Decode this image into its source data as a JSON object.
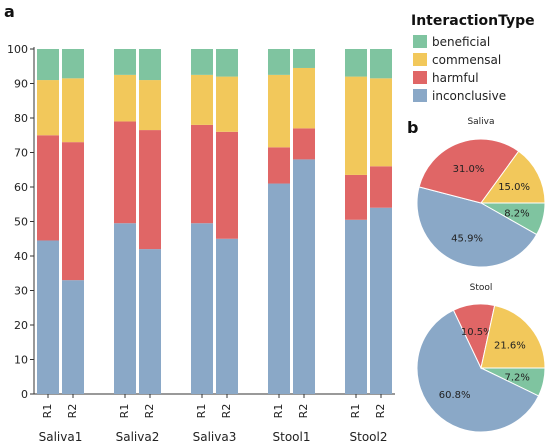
{
  "panel_labels": {
    "a": "a",
    "b": "b"
  },
  "legend": {
    "title": "InteractionType",
    "items": [
      {
        "label": "beneficial",
        "color": "#7fc4a0"
      },
      {
        "label": "commensal",
        "color": "#f2c85b"
      },
      {
        "label": "harmful",
        "color": "#e06666"
      },
      {
        "label": "inconclusive",
        "color": "#8aa8c7"
      }
    ]
  },
  "chart_data": [
    {
      "type": "bar",
      "stacked": true,
      "ylim": [
        0,
        100
      ],
      "yticks": [
        0,
        10,
        20,
        30,
        40,
        50,
        60,
        70,
        80,
        90,
        100
      ],
      "groups": [
        {
          "name": "Saliva1",
          "bars": [
            {
              "label": "R1",
              "inconclusive": 44.5,
              "harmful": 30.5,
              "commensal": 16.0,
              "beneficial": 9.0
            },
            {
              "label": "R2",
              "inconclusive": 33.0,
              "harmful": 40.0,
              "commensal": 18.5,
              "beneficial": 8.5
            }
          ]
        },
        {
          "name": "Saliva2",
          "bars": [
            {
              "label": "R1",
              "inconclusive": 49.5,
              "harmful": 29.5,
              "commensal": 13.5,
              "beneficial": 7.5
            },
            {
              "label": "R2",
              "inconclusive": 42.0,
              "harmful": 34.5,
              "commensal": 14.5,
              "beneficial": 9.0
            }
          ]
        },
        {
          "name": "Saliva3",
          "bars": [
            {
              "label": "R1",
              "inconclusive": 49.5,
              "harmful": 28.5,
              "commensal": 14.5,
              "beneficial": 7.5
            },
            {
              "label": "R2",
              "inconclusive": 45.0,
              "harmful": 31.0,
              "commensal": 16.0,
              "beneficial": 8.0
            }
          ]
        },
        {
          "name": "Stool1",
          "bars": [
            {
              "label": "R1",
              "inconclusive": 61.0,
              "harmful": 10.5,
              "commensal": 21.0,
              "beneficial": 7.5
            },
            {
              "label": "R2",
              "inconclusive": 68.0,
              "harmful": 9.0,
              "commensal": 17.5,
              "beneficial": 5.5
            }
          ]
        },
        {
          "name": "Stool2",
          "bars": [
            {
              "label": "R1",
              "inconclusive": 50.5,
              "harmful": 13.0,
              "commensal": 28.5,
              "beneficial": 8.0
            },
            {
              "label": "R2",
              "inconclusive": 54.0,
              "harmful": 12.0,
              "commensal": 25.5,
              "beneficial": 8.5
            }
          ]
        }
      ]
    },
    {
      "type": "pie",
      "title": "Saliva",
      "slices": [
        {
          "label": "beneficial",
          "value": 8.2,
          "text": "8.2%"
        },
        {
          "label": "inconclusive",
          "value": 45.9,
          "text": "45.9%"
        },
        {
          "label": "harmful",
          "value": 31.0,
          "text": "31.0%"
        },
        {
          "label": "commensal",
          "value": 15.0,
          "text": "15.0%"
        }
      ]
    },
    {
      "type": "pie",
      "title": "Stool",
      "slices": [
        {
          "label": "beneficial",
          "value": 7.2,
          "text": "7.2%"
        },
        {
          "label": "inconclusive",
          "value": 60.8,
          "text": "60.8%"
        },
        {
          "label": "harmful",
          "value": 10.5,
          "text": "10.5%"
        },
        {
          "label": "commensal",
          "value": 21.6,
          "text": "21.6%"
        }
      ]
    }
  ]
}
